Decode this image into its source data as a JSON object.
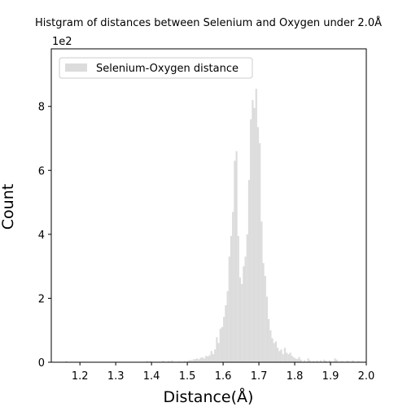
{
  "chart_data": {
    "type": "bar",
    "title": "Histgram of distances between Selenium and Oxygen under 2.0Å",
    "xlabel": "Distance(Å)",
    "ylabel": "Count",
    "y_multiplier_label": "1e2",
    "xlim": [
      1.12,
      2.0
    ],
    "ylim": [
      0,
      980
    ],
    "x_ticks": [
      "1.2",
      "1.3",
      "1.4",
      "1.5",
      "1.6",
      "1.7",
      "1.8",
      "1.9",
      "2.0"
    ],
    "y_ticks": [
      "0",
      "2",
      "4",
      "6",
      "8"
    ],
    "grid": false,
    "legend_position": "top-left",
    "bin_width": 0.005,
    "series": [
      {
        "name": "Selenium-Oxygen distance",
        "color": "#dcdcdc",
        "bins": [
          [
            1.16,
            4
          ],
          [
            1.385,
            4
          ],
          [
            1.395,
            3
          ],
          [
            1.43,
            5
          ],
          [
            1.445,
            4
          ],
          [
            1.455,
            6
          ],
          [
            1.475,
            3
          ],
          [
            1.49,
            4
          ],
          [
            1.5,
            5
          ],
          [
            1.505,
            7
          ],
          [
            1.51,
            6
          ],
          [
            1.515,
            9
          ],
          [
            1.52,
            10
          ],
          [
            1.525,
            12
          ],
          [
            1.53,
            9
          ],
          [
            1.535,
            14
          ],
          [
            1.54,
            15
          ],
          [
            1.545,
            12
          ],
          [
            1.55,
            20
          ],
          [
            1.555,
            18
          ],
          [
            1.56,
            22
          ],
          [
            1.565,
            35
          ],
          [
            1.57,
            25
          ],
          [
            1.575,
            40
          ],
          [
            1.58,
            78
          ],
          [
            1.585,
            60
          ],
          [
            1.59,
            105
          ],
          [
            1.595,
            110
          ],
          [
            1.6,
            142
          ],
          [
            1.605,
            178
          ],
          [
            1.61,
            222
          ],
          [
            1.615,
            330
          ],
          [
            1.62,
            395
          ],
          [
            1.625,
            470
          ],
          [
            1.63,
            630
          ],
          [
            1.635,
            660
          ],
          [
            1.64,
            395
          ],
          [
            1.645,
            265
          ],
          [
            1.65,
            245
          ],
          [
            1.655,
            300
          ],
          [
            1.66,
            330
          ],
          [
            1.665,
            400
          ],
          [
            1.67,
            570
          ],
          [
            1.675,
            760
          ],
          [
            1.68,
            820
          ],
          [
            1.685,
            795
          ],
          [
            1.69,
            855
          ],
          [
            1.695,
            735
          ],
          [
            1.7,
            685
          ],
          [
            1.705,
            440
          ],
          [
            1.71,
            310
          ],
          [
            1.715,
            270
          ],
          [
            1.72,
            205
          ],
          [
            1.725,
            135
          ],
          [
            1.73,
            100
          ],
          [
            1.735,
            75
          ],
          [
            1.74,
            60
          ],
          [
            1.745,
            65
          ],
          [
            1.75,
            45
          ],
          [
            1.755,
            35
          ],
          [
            1.76,
            40
          ],
          [
            1.765,
            25
          ],
          [
            1.77,
            45
          ],
          [
            1.775,
            30
          ],
          [
            1.78,
            25
          ],
          [
            1.785,
            30
          ],
          [
            1.79,
            20
          ],
          [
            1.795,
            15
          ],
          [
            1.8,
            12
          ],
          [
            1.805,
            10
          ],
          [
            1.81,
            16
          ],
          [
            1.815,
            8
          ],
          [
            1.825,
            6
          ],
          [
            1.835,
            12
          ],
          [
            1.84,
            6
          ],
          [
            1.85,
            4
          ],
          [
            1.86,
            5
          ],
          [
            1.87,
            6
          ],
          [
            1.88,
            8
          ],
          [
            1.885,
            5
          ],
          [
            1.895,
            6
          ],
          [
            1.91,
            12
          ],
          [
            1.915,
            8
          ],
          [
            1.93,
            4
          ],
          [
            1.945,
            5
          ],
          [
            1.96,
            6
          ],
          [
            1.975,
            4
          ]
        ]
      }
    ]
  }
}
